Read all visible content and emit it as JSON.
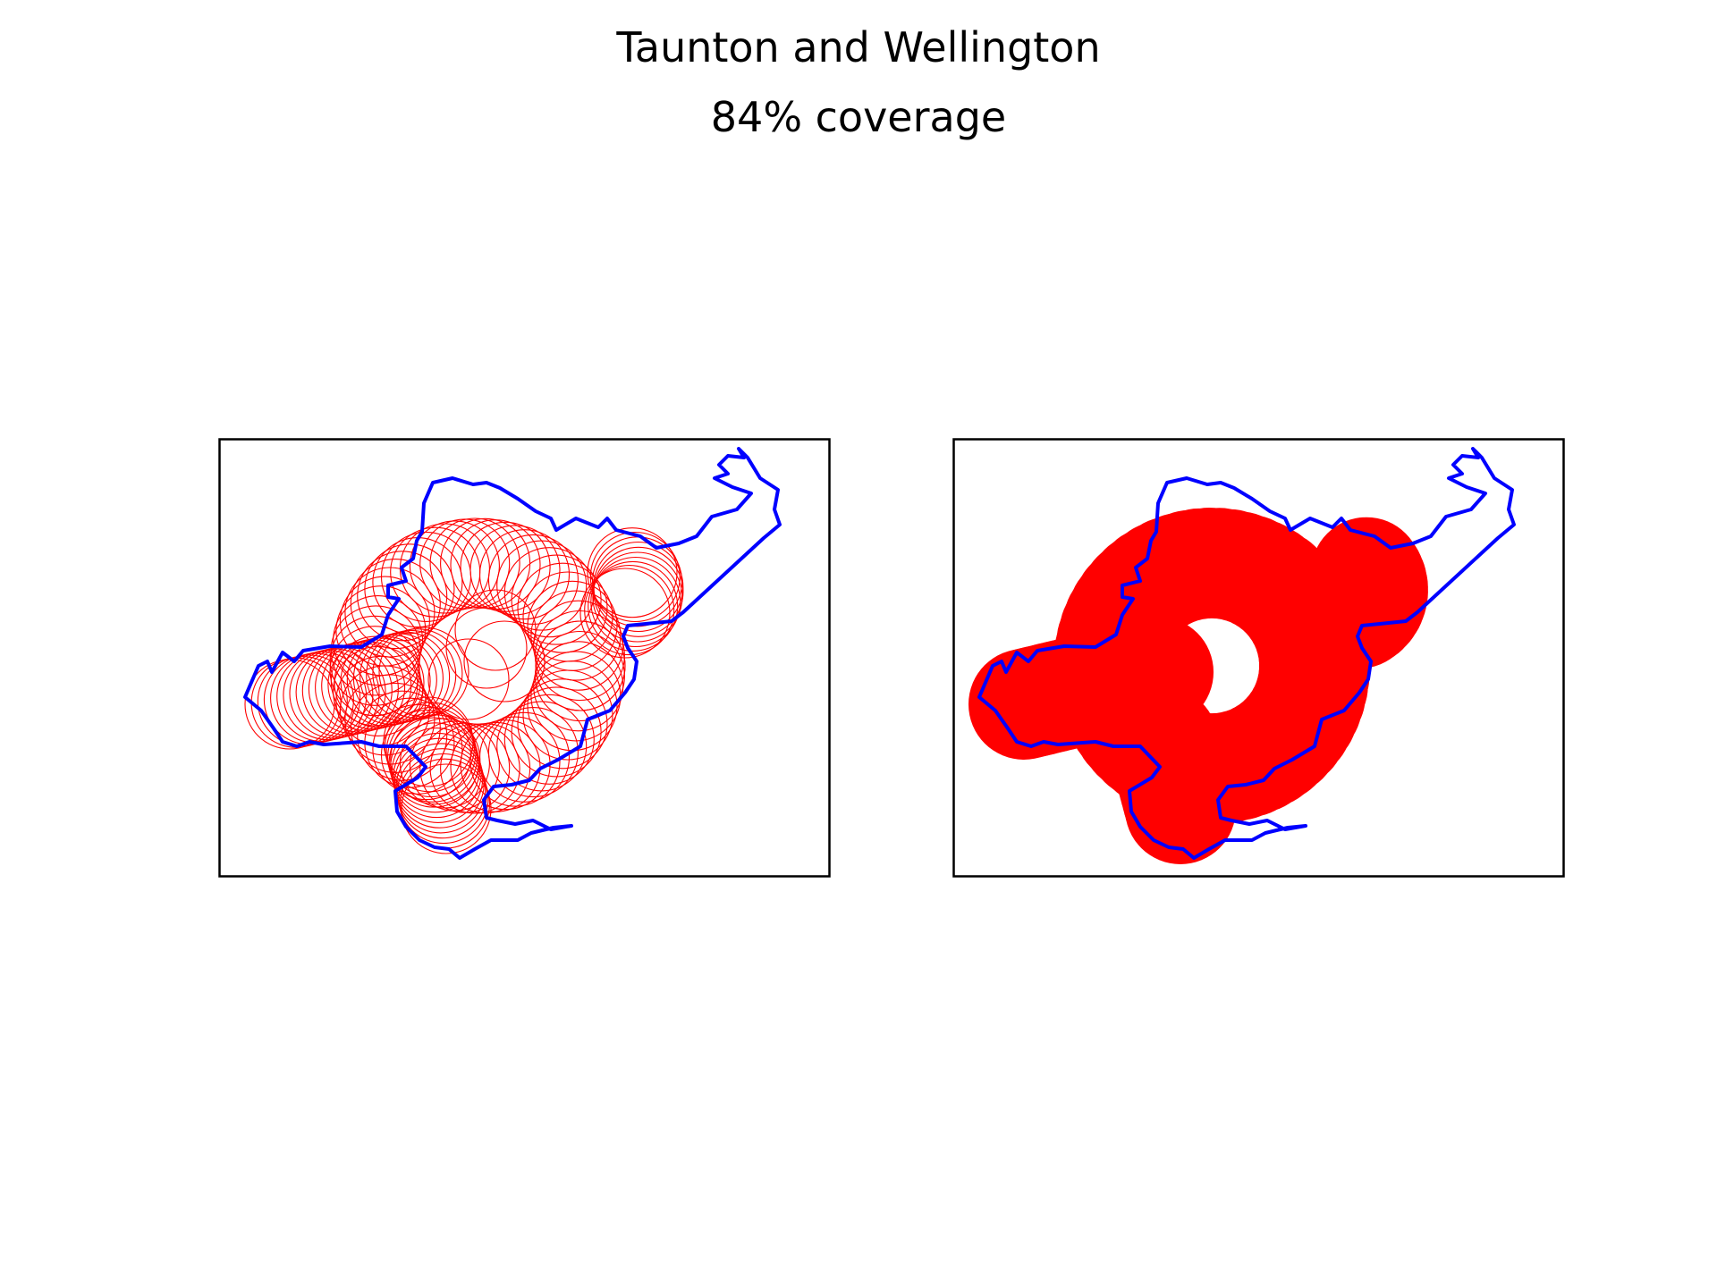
{
  "figure": {
    "title": "Taunton and Wellington",
    "subtitle": "84% coverage"
  },
  "colors": {
    "boundary": "#0000ff",
    "coverage": "#ff0000",
    "frame": "#000000",
    "background": "#ffffff"
  },
  "panels": [
    {
      "name": "coverage-circles-outline",
      "style": "outline"
    },
    {
      "name": "coverage-circles-filled",
      "style": "filled"
    }
  ]
}
